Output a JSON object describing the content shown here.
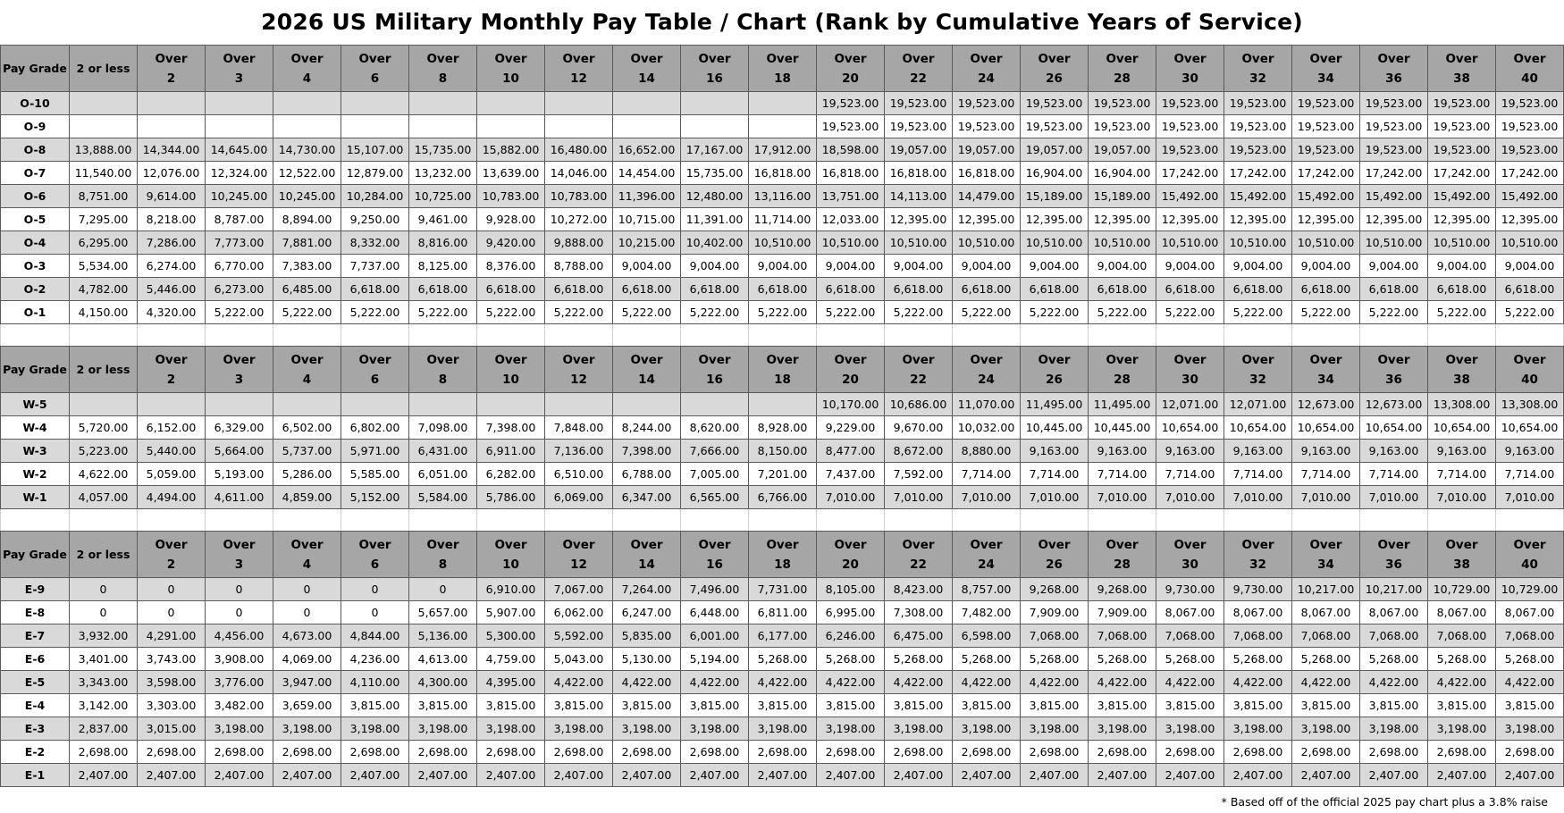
{
  "title": "2026 US Military Monthly Pay Table / Chart    (Rank by Cumulative Years of Service)",
  "header": {
    "grade": "Pay Grade",
    "first": "2 or less",
    "over": "Over",
    "years": [
      "2",
      "3",
      "4",
      "6",
      "8",
      "10",
      "12",
      "14",
      "16",
      "18",
      "20",
      "22",
      "24",
      "26",
      "28",
      "30",
      "32",
      "34",
      "36",
      "38",
      "40"
    ]
  },
  "footnote": "* Based off of the official 2025 pay chart plus a 3.8% raise",
  "sections": [
    {
      "rows": [
        {
          "grade": "O-10",
          "values": [
            "",
            "",
            "",
            "",
            "",
            "",
            "",
            "",
            "",
            "",
            "",
            "19,523.00",
            "19,523.00",
            "19,523.00",
            "19,523.00",
            "19,523.00",
            "19,523.00",
            "19,523.00",
            "19,523.00",
            "19,523.00",
            "19,523.00",
            "19,523.00"
          ]
        },
        {
          "grade": "O-9",
          "values": [
            "",
            "",
            "",
            "",
            "",
            "",
            "",
            "",
            "",
            "",
            "",
            "19,523.00",
            "19,523.00",
            "19,523.00",
            "19,523.00",
            "19,523.00",
            "19,523.00",
            "19,523.00",
            "19,523.00",
            "19,523.00",
            "19,523.00",
            "19,523.00"
          ]
        },
        {
          "grade": "O-8",
          "values": [
            "13,888.00",
            "14,344.00",
            "14,645.00",
            "14,730.00",
            "15,107.00",
            "15,735.00",
            "15,882.00",
            "16,480.00",
            "16,652.00",
            "17,167.00",
            "17,912.00",
            "18,598.00",
            "19,057.00",
            "19,057.00",
            "19,057.00",
            "19,057.00",
            "19,523.00",
            "19,523.00",
            "19,523.00",
            "19,523.00",
            "19,523.00",
            "19,523.00"
          ]
        },
        {
          "grade": "O-7",
          "values": [
            "11,540.00",
            "12,076.00",
            "12,324.00",
            "12,522.00",
            "12,879.00",
            "13,232.00",
            "13,639.00",
            "14,046.00",
            "14,454.00",
            "15,735.00",
            "16,818.00",
            "16,818.00",
            "16,818.00",
            "16,818.00",
            "16,904.00",
            "16,904.00",
            "17,242.00",
            "17,242.00",
            "17,242.00",
            "17,242.00",
            "17,242.00",
            "17,242.00"
          ]
        },
        {
          "grade": "O-6",
          "values": [
            "8,751.00",
            "9,614.00",
            "10,245.00",
            "10,245.00",
            "10,284.00",
            "10,725.00",
            "10,783.00",
            "10,783.00",
            "11,396.00",
            "12,480.00",
            "13,116.00",
            "13,751.00",
            "14,113.00",
            "14,479.00",
            "15,189.00",
            "15,189.00",
            "15,492.00",
            "15,492.00",
            "15,492.00",
            "15,492.00",
            "15,492.00",
            "15,492.00"
          ]
        },
        {
          "grade": "O-5",
          "values": [
            "7,295.00",
            "8,218.00",
            "8,787.00",
            "8,894.00",
            "9,250.00",
            "9,461.00",
            "9,928.00",
            "10,272.00",
            "10,715.00",
            "11,391.00",
            "11,714.00",
            "12,033.00",
            "12,395.00",
            "12,395.00",
            "12,395.00",
            "12,395.00",
            "12,395.00",
            "12,395.00",
            "12,395.00",
            "12,395.00",
            "12,395.00",
            "12,395.00"
          ]
        },
        {
          "grade": "O-4",
          "values": [
            "6,295.00",
            "7,286.00",
            "7,773.00",
            "7,881.00",
            "8,332.00",
            "8,816.00",
            "9,420.00",
            "9,888.00",
            "10,215.00",
            "10,402.00",
            "10,510.00",
            "10,510.00",
            "10,510.00",
            "10,510.00",
            "10,510.00",
            "10,510.00",
            "10,510.00",
            "10,510.00",
            "10,510.00",
            "10,510.00",
            "10,510.00",
            "10,510.00"
          ]
        },
        {
          "grade": "O-3",
          "values": [
            "5,534.00",
            "6,274.00",
            "6,770.00",
            "7,383.00",
            "7,737.00",
            "8,125.00",
            "8,376.00",
            "8,788.00",
            "9,004.00",
            "9,004.00",
            "9,004.00",
            "9,004.00",
            "9,004.00",
            "9,004.00",
            "9,004.00",
            "9,004.00",
            "9,004.00",
            "9,004.00",
            "9,004.00",
            "9,004.00",
            "9,004.00",
            "9,004.00"
          ]
        },
        {
          "grade": "O-2",
          "values": [
            "4,782.00",
            "5,446.00",
            "6,273.00",
            "6,485.00",
            "6,618.00",
            "6,618.00",
            "6,618.00",
            "6,618.00",
            "6,618.00",
            "6,618.00",
            "6,618.00",
            "6,618.00",
            "6,618.00",
            "6,618.00",
            "6,618.00",
            "6,618.00",
            "6,618.00",
            "6,618.00",
            "6,618.00",
            "6,618.00",
            "6,618.00",
            "6,618.00"
          ]
        },
        {
          "grade": "O-1",
          "values": [
            "4,150.00",
            "4,320.00",
            "5,222.00",
            "5,222.00",
            "5,222.00",
            "5,222.00",
            "5,222.00",
            "5,222.00",
            "5,222.00",
            "5,222.00",
            "5,222.00",
            "5,222.00",
            "5,222.00",
            "5,222.00",
            "5,222.00",
            "5,222.00",
            "5,222.00",
            "5,222.00",
            "5,222.00",
            "5,222.00",
            "5,222.00",
            "5,222.00"
          ]
        }
      ]
    },
    {
      "rows": [
        {
          "grade": "W-5",
          "values": [
            "",
            "",
            "",
            "",
            "",
            "",
            "",
            "",
            "",
            "",
            "",
            "10,170.00",
            "10,686.00",
            "11,070.00",
            "11,495.00",
            "11,495.00",
            "12,071.00",
            "12,071.00",
            "12,673.00",
            "12,673.00",
            "13,308.00",
            "13,308.00"
          ]
        },
        {
          "grade": "W-4",
          "values": [
            "5,720.00",
            "6,152.00",
            "6,329.00",
            "6,502.00",
            "6,802.00",
            "7,098.00",
            "7,398.00",
            "7,848.00",
            "8,244.00",
            "8,620.00",
            "8,928.00",
            "9,229.00",
            "9,670.00",
            "10,032.00",
            "10,445.00",
            "10,445.00",
            "10,654.00",
            "10,654.00",
            "10,654.00",
            "10,654.00",
            "10,654.00",
            "10,654.00"
          ]
        },
        {
          "grade": "W-3",
          "values": [
            "5,223.00",
            "5,440.00",
            "5,664.00",
            "5,737.00",
            "5,971.00",
            "6,431.00",
            "6,911.00",
            "7,136.00",
            "7,398.00",
            "7,666.00",
            "8,150.00",
            "8,477.00",
            "8,672.00",
            "8,880.00",
            "9,163.00",
            "9,163.00",
            "9,163.00",
            "9,163.00",
            "9,163.00",
            "9,163.00",
            "9,163.00",
            "9,163.00"
          ]
        },
        {
          "grade": "W-2",
          "values": [
            "4,622.00",
            "5,059.00",
            "5,193.00",
            "5,286.00",
            "5,585.00",
            "6,051.00",
            "6,282.00",
            "6,510.00",
            "6,788.00",
            "7,005.00",
            "7,201.00",
            "7,437.00",
            "7,592.00",
            "7,714.00",
            "7,714.00",
            "7,714.00",
            "7,714.00",
            "7,714.00",
            "7,714.00",
            "7,714.00",
            "7,714.00",
            "7,714.00"
          ]
        },
        {
          "grade": "W-1",
          "values": [
            "4,057.00",
            "4,494.00",
            "4,611.00",
            "4,859.00",
            "5,152.00",
            "5,584.00",
            "5,786.00",
            "6,069.00",
            "6,347.00",
            "6,565.00",
            "6,766.00",
            "7,010.00",
            "7,010.00",
            "7,010.00",
            "7,010.00",
            "7,010.00",
            "7,010.00",
            "7,010.00",
            "7,010.00",
            "7,010.00",
            "7,010.00",
            "7,010.00"
          ]
        }
      ]
    },
    {
      "rows": [
        {
          "grade": "E-9",
          "values": [
            "0",
            "0",
            "0",
            "0",
            "0",
            "0",
            "6,910.00",
            "7,067.00",
            "7,264.00",
            "7,496.00",
            "7,731.00",
            "8,105.00",
            "8,423.00",
            "8,757.00",
            "9,268.00",
            "9,268.00",
            "9,730.00",
            "9,730.00",
            "10,217.00",
            "10,217.00",
            "10,729.00",
            "10,729.00"
          ]
        },
        {
          "grade": "E-8",
          "values": [
            "0",
            "0",
            "0",
            "0",
            "0",
            "5,657.00",
            "5,907.00",
            "6,062.00",
            "6,247.00",
            "6,448.00",
            "6,811.00",
            "6,995.00",
            "7,308.00",
            "7,482.00",
            "7,909.00",
            "7,909.00",
            "8,067.00",
            "8,067.00",
            "8,067.00",
            "8,067.00",
            "8,067.00",
            "8,067.00"
          ]
        },
        {
          "grade": "E-7",
          "values": [
            "3,932.00",
            "4,291.00",
            "4,456.00",
            "4,673.00",
            "4,844.00",
            "5,136.00",
            "5,300.00",
            "5,592.00",
            "5,835.00",
            "6,001.00",
            "6,177.00",
            "6,246.00",
            "6,475.00",
            "6,598.00",
            "7,068.00",
            "7,068.00",
            "7,068.00",
            "7,068.00",
            "7,068.00",
            "7,068.00",
            "7,068.00",
            "7,068.00"
          ]
        },
        {
          "grade": "E-6",
          "values": [
            "3,401.00",
            "3,743.00",
            "3,908.00",
            "4,069.00",
            "4,236.00",
            "4,613.00",
            "4,759.00",
            "5,043.00",
            "5,130.00",
            "5,194.00",
            "5,268.00",
            "5,268.00",
            "5,268.00",
            "5,268.00",
            "5,268.00",
            "5,268.00",
            "5,268.00",
            "5,268.00",
            "5,268.00",
            "5,268.00",
            "5,268.00",
            "5,268.00"
          ]
        },
        {
          "grade": "E-5",
          "values": [
            "3,343.00",
            "3,598.00",
            "3,776.00",
            "3,947.00",
            "4,110.00",
            "4,300.00",
            "4,395.00",
            "4,422.00",
            "4,422.00",
            "4,422.00",
            "4,422.00",
            "4,422.00",
            "4,422.00",
            "4,422.00",
            "4,422.00",
            "4,422.00",
            "4,422.00",
            "4,422.00",
            "4,422.00",
            "4,422.00",
            "4,422.00",
            "4,422.00"
          ]
        },
        {
          "grade": "E-4",
          "values": [
            "3,142.00",
            "3,303.00",
            "3,482.00",
            "3,659.00",
            "3,815.00",
            "3,815.00",
            "3,815.00",
            "3,815.00",
            "3,815.00",
            "3,815.00",
            "3,815.00",
            "3,815.00",
            "3,815.00",
            "3,815.00",
            "3,815.00",
            "3,815.00",
            "3,815.00",
            "3,815.00",
            "3,815.00",
            "3,815.00",
            "3,815.00",
            "3,815.00"
          ]
        },
        {
          "grade": "E-3",
          "values": [
            "2,837.00",
            "3,015.00",
            "3,198.00",
            "3,198.00",
            "3,198.00",
            "3,198.00",
            "3,198.00",
            "3,198.00",
            "3,198.00",
            "3,198.00",
            "3,198.00",
            "3,198.00",
            "3,198.00",
            "3,198.00",
            "3,198.00",
            "3,198.00",
            "3,198.00",
            "3,198.00",
            "3,198.00",
            "3,198.00",
            "3,198.00",
            "3,198.00"
          ]
        },
        {
          "grade": "E-2",
          "values": [
            "2,698.00",
            "2,698.00",
            "2,698.00",
            "2,698.00",
            "2,698.00",
            "2,698.00",
            "2,698.00",
            "2,698.00",
            "2,698.00",
            "2,698.00",
            "2,698.00",
            "2,698.00",
            "2,698.00",
            "2,698.00",
            "2,698.00",
            "2,698.00",
            "2,698.00",
            "2,698.00",
            "2,698.00",
            "2,698.00",
            "2,698.00",
            "2,698.00"
          ]
        },
        {
          "grade": "E-1",
          "values": [
            "2,407.00",
            "2,407.00",
            "2,407.00",
            "2,407.00",
            "2,407.00",
            "2,407.00",
            "2,407.00",
            "2,407.00",
            "2,407.00",
            "2,407.00",
            "2,407.00",
            "2,407.00",
            "2,407.00",
            "2,407.00",
            "2,407.00",
            "2,407.00",
            "2,407.00",
            "2,407.00",
            "2,407.00",
            "2,407.00",
            "2,407.00",
            "2,407.00"
          ]
        }
      ]
    }
  ]
}
